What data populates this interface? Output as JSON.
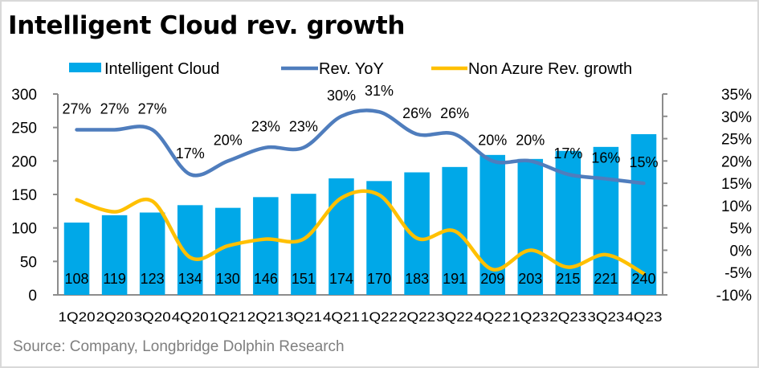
{
  "chart_data": {
    "type": "bar",
    "title": "Intelligent Cloud rev. growth",
    "categories": [
      "1Q20",
      "2Q20",
      "3Q20",
      "4Q20",
      "1Q21",
      "2Q21",
      "3Q21",
      "4Q21",
      "1Q22",
      "2Q22",
      "3Q22",
      "4Q22",
      "1Q23",
      "2Q23",
      "3Q23",
      "4Q23"
    ],
    "series": [
      {
        "name": "Intelligent Cloud",
        "type": "bar",
        "axis": "left",
        "color": "#00a8e8",
        "values": [
          108,
          119,
          123,
          134,
          130,
          146,
          151,
          174,
          170,
          183,
          191,
          209,
          203,
          215,
          221,
          240
        ]
      },
      {
        "name": "Rev. YoY",
        "type": "line",
        "axis": "right",
        "color": "#4f7dbd",
        "unit": "%",
        "values": [
          27,
          27,
          27,
          17,
          20,
          23,
          23,
          30,
          31,
          26,
          26,
          20,
          20,
          17,
          16,
          15
        ]
      },
      {
        "name": "Non Azure Rev. growth",
        "type": "line",
        "axis": "right",
        "color": "#ffc000",
        "unit": "%",
        "values": [
          11.3,
          8.6,
          11.0,
          -1.6,
          1.0,
          2.5,
          2.5,
          11.7,
          12.4,
          2.7,
          4.3,
          -4.3,
          0.0,
          -3.8,
          -1.0,
          -5.2
        ]
      }
    ],
    "yleft": {
      "ylim": [
        0,
        300
      ],
      "ticks": [
        0,
        50,
        100,
        150,
        200,
        250,
        300
      ],
      "tick_labels": [
        "0",
        "50",
        "100",
        "150",
        "200",
        "250",
        "300"
      ]
    },
    "yright": {
      "ylim": [
        -10,
        35
      ],
      "ticks": [
        -10,
        -5,
        0,
        5,
        10,
        15,
        20,
        25,
        30,
        35
      ],
      "tick_labels": [
        "-10%",
        "-5%",
        "0%",
        "5%",
        "10%",
        "15%",
        "20%",
        "25%",
        "30%",
        "35%"
      ]
    },
    "bar_labels": [
      "108",
      "119",
      "123",
      "134",
      "130",
      "146",
      "151",
      "174",
      "170",
      "183",
      "191",
      "209",
      "203",
      "215",
      "221",
      "240"
    ],
    "line_labels": [
      "27%",
      "27%",
      "27%",
      "17%",
      "20%",
      "23%",
      "23%",
      "30%",
      "31%",
      "26%",
      "26%",
      "20%",
      "20%",
      "17%",
      "16%",
      "15%"
    ],
    "legend": {
      "position": "top",
      "entries": [
        "Intelligent Cloud",
        "Rev. YoY",
        "Non Azure Rev. growth"
      ]
    },
    "grid": false,
    "xlabel": "",
    "ylabel": ""
  },
  "source": "Source:  Company, Longbridge Dolphin Research"
}
